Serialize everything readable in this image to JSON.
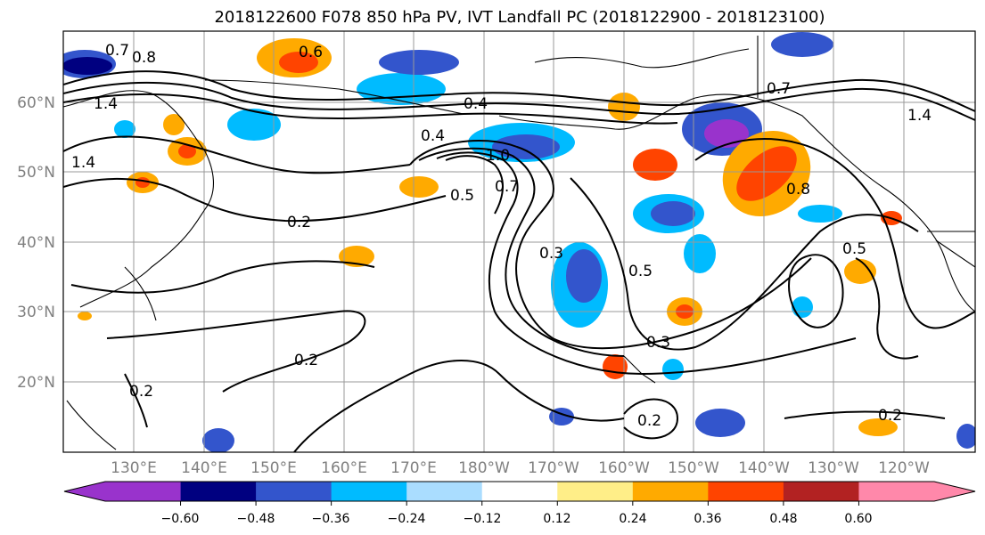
{
  "title": "2018122600 F078 850 hPa PV, IVT Landfall PC (2018122900 - 2018123100)",
  "map": {
    "lon_labels": [
      "130°E",
      "140°E",
      "150°E",
      "160°E",
      "170°E",
      "180°W",
      "170°W",
      "160°W",
      "150°W",
      "140°W",
      "130°W",
      "120°W"
    ],
    "lat_labels": [
      "60°N",
      "50°N",
      "40°N",
      "30°N",
      "20°N"
    ],
    "grid": true,
    "contour_labels": [
      "0.7",
      "0.8",
      "0.6",
      "1.4",
      "1.4",
      "0.4",
      "0.4",
      "1.0",
      "0.5",
      "0.7",
      "0.2",
      "0.3",
      "0.5",
      "0.8",
      "0.7",
      "1.4",
      "0.5",
      "0.2",
      "0.3",
      "0.2",
      "0.2",
      "0.2"
    ]
  },
  "colorbar": {
    "ticks": [
      "−0.60",
      "−0.48",
      "−0.36",
      "−0.24",
      "−0.12",
      "0.12",
      "0.24",
      "0.36",
      "0.48",
      "0.60"
    ],
    "colors": [
      "#9933cc",
      "#000080",
      "#3355cc",
      "#00bbff",
      "#aaddff",
      "#ffffff",
      "#ffee88",
      "#ffaa00",
      "#ff4400",
      "#b22222",
      "#ff88aa"
    ],
    "extend": "both"
  }
}
